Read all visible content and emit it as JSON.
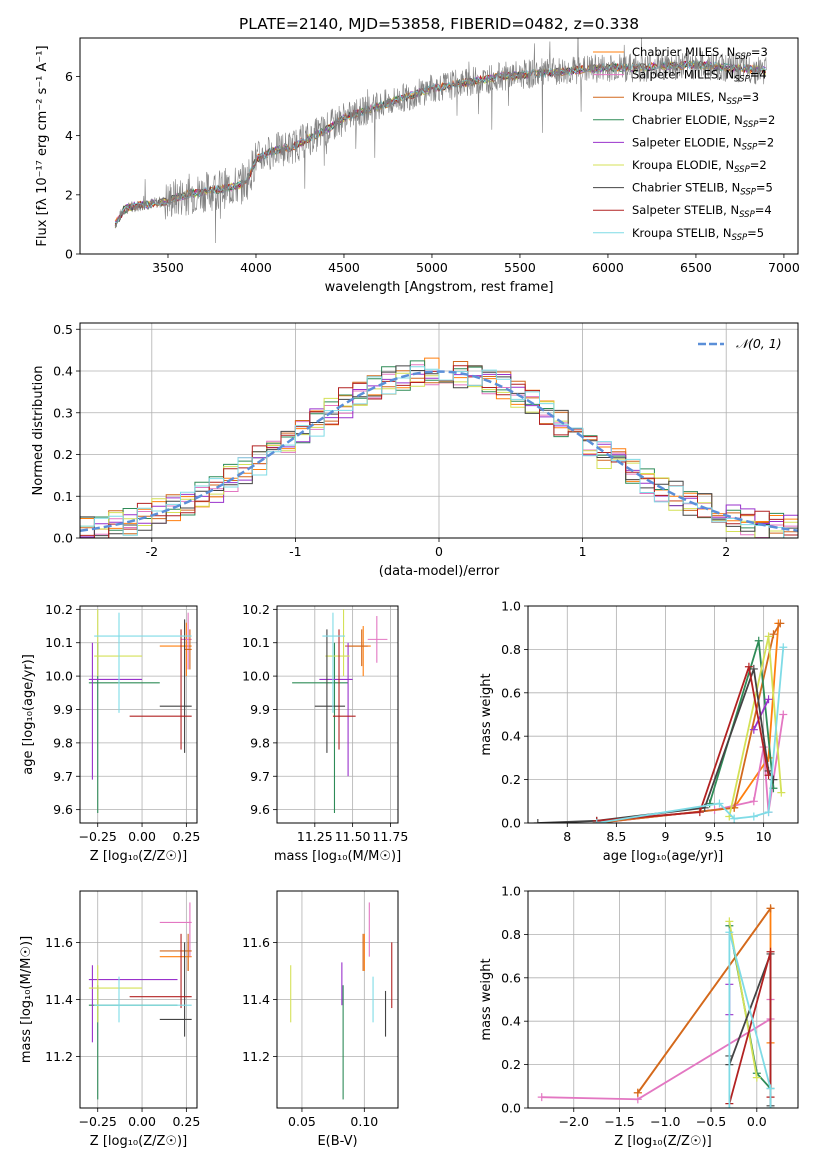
{
  "figure_title": "PLATE=2140, MJD=53858, FIBERID=0482, z=0.338",
  "models": [
    {
      "name": "Chabrier MILES",
      "nssp": "3",
      "color": "#ff7f0e"
    },
    {
      "name": "Salpeter MILES",
      "nssp": "4",
      "color": "#e377c2"
    },
    {
      "name": "Kroupa MILES",
      "nssp": "3",
      "color": "#d2691e"
    },
    {
      "name": "Chabrier ELODIE",
      "nssp": "2",
      "color": "#2e8b57"
    },
    {
      "name": "Salpeter ELODIE",
      "nssp": "2",
      "color": "#9932cc"
    },
    {
      "name": "Kroupa ELODIE",
      "nssp": "2",
      "color": "#d4e157"
    },
    {
      "name": "Chabrier STELIB",
      "nssp": "5",
      "color": "#444444"
    },
    {
      "name": "Salpeter STELIB",
      "nssp": "4",
      "color": "#b22222"
    },
    {
      "name": "Kroupa STELIB",
      "nssp": "5",
      "color": "#7fdbe6"
    }
  ],
  "chart_data": [
    {
      "id": "spectrum",
      "type": "line",
      "xlabel": "wavelength [Angstrom, rest frame]",
      "ylabel": "Flux [fλ 10⁻¹⁷ erg cm⁻² s⁻¹ A⁻¹]",
      "xlim": [
        3000,
        7080
      ],
      "ylim": [
        0,
        7.3
      ],
      "xticks": [
        3500,
        4000,
        4500,
        5000,
        5500,
        6000,
        6500,
        7000
      ],
      "yticks": [
        0,
        2,
        4,
        6
      ],
      "data_color": "#808080",
      "x": [
        3200,
        3250,
        3300,
        3400,
        3500,
        3600,
        3700,
        3800,
        3900,
        3950,
        4000,
        4100,
        4200,
        4300,
        4400,
        4500,
        4600,
        4700,
        4800,
        4900,
        5000,
        5100,
        5200,
        5300,
        5400,
        5500,
        5600,
        5700,
        5800,
        5900,
        6000,
        6100,
        6200,
        6300,
        6400,
        6500,
        6600,
        6700,
        6800,
        6900
      ],
      "y": [
        1.0,
        1.5,
        1.6,
        1.7,
        1.8,
        2.0,
        2.1,
        2.2,
        2.3,
        2.5,
        3.2,
        3.5,
        3.6,
        3.9,
        4.2,
        4.6,
        4.8,
        5.0,
        5.2,
        5.4,
        5.6,
        5.7,
        5.8,
        5.9,
        6.0,
        6.05,
        6.1,
        6.15,
        6.2,
        6.25,
        6.3,
        6.3,
        6.3,
        6.35,
        6.35,
        6.4,
        6.35,
        6.3,
        6.25,
        6.2
      ],
      "legend_position": "upper right"
    },
    {
      "id": "residuals",
      "type": "line",
      "xlabel": "(data-model)/error",
      "ylabel": "Normed distribution",
      "xlim": [
        -2.5,
        2.5
      ],
      "ylim": [
        0,
        0.515
      ],
      "xticks": [
        -2,
        -1,
        0,
        1,
        2
      ],
      "yticks": [
        0.0,
        0.1,
        0.2,
        0.3,
        0.4,
        0.5
      ],
      "grid": true,
      "gaussian_label": "𝒩(0, 1)",
      "gaussian_color": "#5b8fd8",
      "legend_position": "upper right",
      "bin_width": 0.1
    },
    {
      "id": "age_vs_Z",
      "type": "scatter",
      "xlabel": "Z [log₁₀(Z/Z☉)]",
      "ylabel": "age  [log₁₀(age/yr)]",
      "xlim": [
        -0.35,
        0.31
      ],
      "ylim": [
        9.56,
        10.21
      ],
      "xticks": [
        -0.25,
        0.0,
        0.25
      ],
      "xticklabels": [
        "−0.25",
        "0.00",
        "0.25"
      ],
      "yticks": [
        9.6,
        9.7,
        9.8,
        9.9,
        10.0,
        10.1,
        10.2
      ],
      "grid": true,
      "points": [
        {
          "x": 0.25,
          "y": 10.09,
          "xl": 0.1,
          "xh": 0.28,
          "yl": 10.0,
          "yh": 10.16
        },
        {
          "x": 0.26,
          "y": 10.11,
          "xl": 0.22,
          "xh": 0.28,
          "yl": 10.02,
          "yh": 10.19
        },
        {
          "x": 0.27,
          "y": 10.08,
          "xl": 0.24,
          "xh": 0.28,
          "yl": 10.02,
          "yh": 10.14
        },
        {
          "x": -0.25,
          "y": 9.98,
          "xl": -0.3,
          "xh": 0.1,
          "yl": 9.59,
          "yh": 10.1
        },
        {
          "x": -0.28,
          "y": 9.99,
          "xl": -0.3,
          "xh": 0.0,
          "yl": 9.69,
          "yh": 10.1
        },
        {
          "x": -0.25,
          "y": 10.06,
          "xl": -0.27,
          "xh": 0.0,
          "yl": 10.0,
          "yh": 10.2
        },
        {
          "x": 0.24,
          "y": 9.91,
          "xl": 0.1,
          "xh": 0.28,
          "yl": 9.77,
          "yh": 10.17
        },
        {
          "x": 0.22,
          "y": 9.88,
          "xl": -0.07,
          "xh": 0.28,
          "yl": 9.78,
          "yh": 10.14
        },
        {
          "x": -0.13,
          "y": 10.12,
          "xl": -0.27,
          "xh": 0.28,
          "yl": 9.89,
          "yh": 10.19
        }
      ]
    },
    {
      "id": "age_vs_mass",
      "type": "scatter",
      "xlabel": "mass [log₁₀(M/M☉)]",
      "ylabel": "",
      "xlim": [
        11.0,
        11.8
      ],
      "ylim": [
        9.56,
        10.21
      ],
      "xticks": [
        11.25,
        11.5,
        11.75
      ],
      "xticklabels": [
        "11.25",
        "11.50",
        "11.75"
      ],
      "yticks": [
        9.6,
        9.7,
        9.8,
        9.9,
        10.0,
        10.1,
        10.2
      ],
      "grid": true,
      "points": [
        {
          "x": 11.57,
          "y": 10.09,
          "xl": 11.47,
          "xh": 11.62,
          "yl": 10.0,
          "yh": 10.15
        },
        {
          "x": 11.66,
          "y": 10.11,
          "xl": 11.6,
          "xh": 11.73,
          "yl": 10.04,
          "yh": 10.18
        },
        {
          "x": 11.56,
          "y": 10.09,
          "xl": 11.45,
          "xh": 11.6,
          "yl": 10.03,
          "yh": 10.14
        },
        {
          "x": 11.38,
          "y": 9.98,
          "xl": 11.1,
          "xh": 11.47,
          "yl": 9.59,
          "yh": 10.1
        },
        {
          "x": 11.47,
          "y": 9.99,
          "xl": 11.28,
          "xh": 11.5,
          "yl": 9.7,
          "yh": 10.1
        },
        {
          "x": 11.44,
          "y": 10.06,
          "xl": 11.32,
          "xh": 11.48,
          "yl": 10.0,
          "yh": 10.2
        },
        {
          "x": 11.33,
          "y": 9.91,
          "xl": 11.25,
          "xh": 11.45,
          "yl": 9.77,
          "yh": 10.14
        },
        {
          "x": 11.41,
          "y": 9.88,
          "xl": 11.37,
          "xh": 11.52,
          "yl": 9.78,
          "yh": 10.14
        },
        {
          "x": 11.37,
          "y": 10.12,
          "xl": 11.3,
          "xh": 11.45,
          "yl": 9.89,
          "yh": 10.19
        }
      ]
    },
    {
      "id": "weight_vs_age",
      "type": "line",
      "xlabel": "age  [log₁₀(age/yr)]",
      "ylabel": "mass weight",
      "xlim": [
        7.6,
        10.35
      ],
      "ylim": [
        0,
        1.0
      ],
      "xticks": [
        8.0,
        8.5,
        9.0,
        9.5,
        10.0
      ],
      "yticks": [
        0.0,
        0.2,
        0.4,
        0.6,
        0.8,
        1.0
      ],
      "grid": true,
      "series": [
        {
          "x": [
            8.3,
            9.7,
            10.05,
            10.15
          ],
          "y": [
            0.0,
            0.07,
            0.3,
            0.92
          ]
        },
        {
          "x": [
            8.3,
            9.5,
            9.9,
            10.0,
            10.05,
            10.2
          ],
          "y": [
            0.0,
            0.06,
            0.1,
            0.35,
            0.05,
            0.5
          ]
        },
        {
          "x": [
            8.3,
            9.7,
            10.1,
            10.17
          ],
          "y": [
            0.0,
            0.07,
            0.87,
            0.92
          ]
        },
        {
          "x": [
            9.45,
            9.95,
            10.1
          ],
          "y": [
            0.09,
            0.84,
            0.16
          ]
        },
        {
          "x": [
            9.9,
            10.05
          ],
          "y": [
            0.43,
            0.57
          ]
        },
        {
          "x": [
            9.65,
            10.05,
            10.18
          ],
          "y": [
            0.03,
            0.86,
            0.14
          ]
        },
        {
          "x": [
            7.7,
            8.3,
            9.4,
            9.9,
            10.05,
            10.1
          ],
          "y": [
            0.0,
            0.01,
            0.07,
            0.71,
            0.24,
            0.2
          ]
        },
        {
          "x": [
            8.3,
            9.35,
            9.85,
            10.05
          ],
          "y": [
            0.01,
            0.05,
            0.72,
            0.22
          ]
        },
        {
          "x": [
            8.3,
            9.55,
            9.7,
            9.9,
            10.05,
            10.2
          ],
          "y": [
            0.0,
            0.09,
            0.02,
            0.03,
            0.05,
            0.81
          ]
        }
      ]
    },
    {
      "id": "mass_vs_Z",
      "type": "scatter",
      "xlabel": "Z [log₁₀(Z/Z☉)]",
      "ylabel": "mass [log₁₀(M/M☉)]",
      "xlim": [
        -0.35,
        0.31
      ],
      "ylim": [
        11.02,
        11.78
      ],
      "xticks": [
        -0.25,
        0.0,
        0.25
      ],
      "xticklabels": [
        "−0.25",
        "0.00",
        "0.25"
      ],
      "yticks": [
        11.2,
        11.4,
        11.6
      ],
      "grid": true,
      "points": [
        {
          "x": 0.26,
          "y": 11.55,
          "xl": 0.1,
          "xh": 0.28,
          "yl": 11.5,
          "yh": 11.6
        },
        {
          "x": 0.27,
          "y": 11.67,
          "xl": 0.1,
          "xh": 0.28,
          "yl": 11.55,
          "yh": 11.74
        },
        {
          "x": 0.26,
          "y": 11.57,
          "xl": 0.1,
          "xh": 0.28,
          "yl": 11.5,
          "yh": 11.63
        },
        {
          "x": -0.25,
          "y": 11.38,
          "xl": -0.3,
          "xh": 0.2,
          "yl": 11.05,
          "yh": 11.45
        },
        {
          "x": -0.28,
          "y": 11.47,
          "xl": -0.3,
          "xh": 0.2,
          "yl": 11.25,
          "yh": 11.52
        },
        {
          "x": -0.25,
          "y": 11.44,
          "xl": -0.3,
          "xh": 0.0,
          "yl": 11.32,
          "yh": 11.52
        },
        {
          "x": 0.24,
          "y": 11.33,
          "xl": 0.1,
          "xh": 0.28,
          "yl": 11.27,
          "yh": 11.6
        },
        {
          "x": 0.22,
          "y": 11.41,
          "xl": -0.07,
          "xh": 0.28,
          "yl": 11.37,
          "yh": 11.63
        },
        {
          "x": -0.13,
          "y": 11.38,
          "xl": -0.27,
          "xh": 0.28,
          "yl": 11.32,
          "yh": 11.48
        }
      ]
    },
    {
      "id": "mass_vs_EBV",
      "type": "scatter",
      "xlabel": "E(B-V)",
      "ylabel": "",
      "xlim": [
        0.03,
        0.127
      ],
      "ylim": [
        11.02,
        11.78
      ],
      "xticks": [
        0.05,
        0.1
      ],
      "xticklabels": [
        "0.05",
        "0.10"
      ],
      "yticks": [
        11.2,
        11.4,
        11.6
      ],
      "grid": true,
      "points": [
        {
          "x": 0.1,
          "y": 11.55,
          "yl": 11.5,
          "yh": 11.63
        },
        {
          "x": 0.104,
          "y": 11.67,
          "yl": 11.55,
          "yh": 11.74
        },
        {
          "x": 0.099,
          "y": 11.57,
          "yl": 11.5,
          "yh": 11.63
        },
        {
          "x": 0.083,
          "y": 11.38,
          "yl": 11.05,
          "yh": 11.45
        },
        {
          "x": 0.082,
          "y": 11.47,
          "yl": 11.38,
          "yh": 11.53
        },
        {
          "x": 0.041,
          "y": 11.44,
          "yl": 11.32,
          "yh": 11.52
        },
        {
          "x": 0.117,
          "y": 11.33,
          "yl": 11.27,
          "yh": 11.43
        },
        {
          "x": 0.122,
          "y": 11.41,
          "yl": 11.37,
          "yh": 11.6
        },
        {
          "x": 0.107,
          "y": 11.38,
          "yl": 11.32,
          "yh": 11.48
        }
      ]
    },
    {
      "id": "weight_vs_Z",
      "type": "line",
      "xlabel": "Z [log₁₀(Z/Z☉)]",
      "ylabel": "mass weight",
      "xlim": [
        -2.5,
        0.45
      ],
      "ylim": [
        0,
        1.0
      ],
      "xticks": [
        -2.0,
        -1.5,
        -1.0,
        -0.5,
        0.0
      ],
      "xticklabels": [
        "−2.0",
        "−1.5",
        "−1.0",
        "−0.5",
        "0.0"
      ],
      "yticks": [
        0.0,
        0.2,
        0.4,
        0.6,
        0.8,
        1.0
      ],
      "grid": true,
      "series": [
        {
          "x": [
            -1.3,
            0.15,
            0.15
          ],
          "y": [
            0.07,
            0.92,
            0.3
          ]
        },
        {
          "x": [
            -2.35,
            -1.3,
            0.15,
            0.15
          ],
          "y": [
            0.05,
            0.04,
            0.41,
            0.5
          ]
        },
        {
          "x": [
            -1.3,
            0.15
          ],
          "y": [
            0.07,
            0.92
          ]
        },
        {
          "x": [
            -0.3,
            0.0,
            0.15
          ],
          "y": [
            0.84,
            0.16,
            0.09
          ]
        },
        {
          "x": [
            -0.3,
            -0.3
          ],
          "y": [
            0.43,
            0.57
          ]
        },
        {
          "x": [
            -0.3,
            0.0
          ],
          "y": [
            0.86,
            0.14
          ]
        },
        {
          "x": [
            -0.3,
            -0.3,
            0.15,
            0.15
          ],
          "y": [
            0.24,
            0.2,
            0.71,
            0.01
          ]
        },
        {
          "x": [
            -0.3,
            0.15,
            0.15
          ],
          "y": [
            0.02,
            0.72,
            0.05
          ]
        },
        {
          "x": [
            -0.3,
            -0.3,
            0.15,
            0.15
          ],
          "y": [
            0.0,
            0.81,
            0.09,
            0.0
          ]
        }
      ]
    }
  ]
}
